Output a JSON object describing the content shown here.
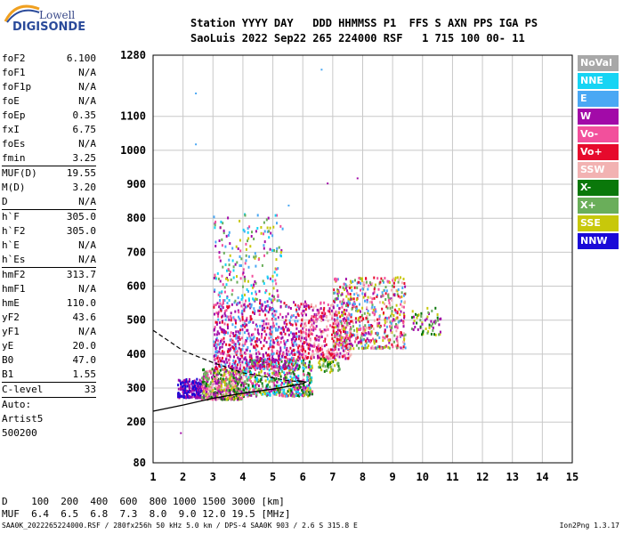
{
  "logo": {
    "line1": "Lowell",
    "line2": "DIGISONDE"
  },
  "header": {
    "line1": "Station YYYY DAY   DDD HHMMSS P1  FFS S AXN PPS IGA PS",
    "line2": "SaoLuis 2022 Sep22 265 224000 RSF   1 715 100 00- 11"
  },
  "params": [
    {
      "k": "foF2",
      "v": "6.100"
    },
    {
      "k": "foF1",
      "v": "N/A"
    },
    {
      "k": "foF1p",
      "v": "N/A"
    },
    {
      "k": "foE",
      "v": "N/A"
    },
    {
      "k": "foEp",
      "v": "0.35"
    },
    {
      "k": "fxI",
      "v": "6.75"
    },
    {
      "k": "foEs",
      "v": "N/A"
    },
    {
      "k": "fmin",
      "v": "3.25"
    },
    {
      "sep": true
    },
    {
      "k": "MUF(D)",
      "v": "19.55"
    },
    {
      "k": "M(D)",
      "v": "3.20"
    },
    {
      "k": "D",
      "v": "N/A"
    },
    {
      "sep": true
    },
    {
      "k": "h`F",
      "v": "305.0"
    },
    {
      "k": "h`F2",
      "v": "305.0"
    },
    {
      "k": "h`E",
      "v": "N/A"
    },
    {
      "k": "h`Es",
      "v": "N/A"
    },
    {
      "sep": true
    },
    {
      "k": "hmF2",
      "v": "313.7"
    },
    {
      "k": "hmF1",
      "v": "N/A"
    },
    {
      "k": "hmE",
      "v": "110.0"
    },
    {
      "k": "yF2",
      "v": "43.6"
    },
    {
      "k": "yF1",
      "v": "N/A"
    },
    {
      "k": "yE",
      "v": "20.0"
    },
    {
      "k": "B0",
      "v": "47.0"
    },
    {
      "k": "B1",
      "v": "1.55"
    },
    {
      "sep": true
    },
    {
      "k": "C-level",
      "v": "33"
    },
    {
      "sep": true
    },
    {
      "t": "Auto:"
    },
    {
      "t": "Artist5"
    },
    {
      "t": "500200"
    }
  ],
  "legend": [
    {
      "label": "NoVal",
      "color": "#a8a8a8"
    },
    {
      "label": "NNE",
      "color": "#16d4f4"
    },
    {
      "label": "E",
      "color": "#4aa8f4"
    },
    {
      "label": "W",
      "color": "#a20aa8"
    },
    {
      "label": "Vo-",
      "color": "#f2509c"
    },
    {
      "label": "Vo+",
      "color": "#e60a2c"
    },
    {
      "label": "SSW",
      "color": "#f2b2b2"
    },
    {
      "label": "X-",
      "color": "#0a780a"
    },
    {
      "label": "X+",
      "color": "#6aae5a"
    },
    {
      "label": "SSE",
      "color": "#c8c80a"
    },
    {
      "label": "NNW",
      "color": "#1a0ad8"
    }
  ],
  "bottom": {
    "line1": "D    100  200  400  600  800 1000 1500 3000 [km]",
    "line2": "MUF  6.4  6.5  6.8  7.3  8.0  9.0 12.0 19.5 [MHz]"
  },
  "footer": {
    "left": "SAA0K_2022265224000.RSF / 280fx256h 50 kHz 5.0 km / DPS-4 SAA0K 903 / 2.6 S 315.8 E",
    "right": "Ion2Png 1.3.17"
  },
  "chart_data": {
    "type": "scatter",
    "xlim": [
      1,
      15
    ],
    "ylim": [
      80,
      1280
    ],
    "x_ticks": [
      1,
      2,
      3,
      4,
      5,
      6,
      7,
      8,
      9,
      10,
      11,
      12,
      13,
      14,
      15
    ],
    "y_ticks": [
      80,
      200,
      300,
      400,
      500,
      600,
      700,
      800,
      900,
      1000,
      1100,
      1280
    ],
    "grid": true,
    "trace_solid": [
      [
        1,
        232
      ],
      [
        2,
        250
      ],
      [
        3,
        270
      ],
      [
        4,
        285
      ],
      [
        5,
        297
      ],
      [
        5.5,
        305
      ],
      [
        6,
        313
      ],
      [
        6.1,
        318
      ],
      [
        5.8,
        322
      ]
    ],
    "trace_dashed": [
      [
        1,
        470
      ],
      [
        2,
        410
      ],
      [
        3,
        375
      ],
      [
        4,
        345
      ],
      [
        5,
        330
      ],
      [
        5.5,
        322
      ],
      [
        6,
        318
      ]
    ],
    "clusters": [
      {
        "x": [
          1.8,
          2.6
        ],
        "y": [
          275,
          330
        ],
        "n": 200,
        "colors": [
          "#1a0ad8",
          "#a20aa8"
        ]
      },
      {
        "x": [
          2.6,
          4.0
        ],
        "y": [
          270,
          360
        ],
        "n": 500,
        "colors": [
          "#a20aa8",
          "#f2509c",
          "#6aae5a",
          "#c8c80a",
          "#0a780a",
          "#f2b2b2"
        ]
      },
      {
        "x": [
          4.0,
          6.3
        ],
        "y": [
          280,
          390
        ],
        "n": 550,
        "colors": [
          "#a20aa8",
          "#f2509c",
          "#6aae5a",
          "#0a780a",
          "#c8c80a",
          "#16d4f4"
        ]
      },
      {
        "x": [
          3.0,
          5.8
        ],
        "y": [
          360,
          560
        ],
        "n": 700,
        "colors": [
          "#a20aa8",
          "#a20aa8",
          "#f2509c",
          "#e60a2c",
          "#4aa8f4"
        ]
      },
      {
        "x": [
          5.8,
          7.6
        ],
        "y": [
          390,
          560
        ],
        "n": 420,
        "colors": [
          "#f2509c",
          "#e60a2c",
          "#a20aa8",
          "#f2b2b2"
        ]
      },
      {
        "x": [
          7.0,
          9.4
        ],
        "y": [
          420,
          630
        ],
        "n": 600,
        "colors": [
          "#a20aa8",
          "#f2509c",
          "#f2b2b2",
          "#e60a2c",
          "#c8c80a",
          "#6aae5a",
          "#4aa8f4"
        ]
      },
      {
        "x": [
          9.6,
          10.6
        ],
        "y": [
          460,
          540
        ],
        "n": 60,
        "colors": [
          "#6aae5a",
          "#0a780a",
          "#c8c80a",
          "#a20aa8"
        ]
      },
      {
        "x": [
          3.0,
          5.3
        ],
        "y": [
          560,
          820
        ],
        "n": 220,
        "colors": [
          "#a20aa8",
          "#f2509c",
          "#c8c80a",
          "#6aae5a",
          "#4aa8f4",
          "#16d4f4"
        ]
      },
      {
        "x": [
          6.5,
          7.2
        ],
        "y": [
          350,
          390
        ],
        "n": 50,
        "colors": [
          "#6aae5a",
          "#c8c80a",
          "#0a780a"
        ]
      }
    ],
    "outliers": [
      {
        "x": 2.4,
        "y": 1170,
        "c": "#4aa8f4"
      },
      {
        "x": 2.4,
        "y": 1020,
        "c": "#4aa8f4"
      },
      {
        "x": 6.6,
        "y": 1240,
        "c": "#4aa8f4"
      },
      {
        "x": 6.8,
        "y": 905,
        "c": "#a20aa8"
      },
      {
        "x": 5.5,
        "y": 840,
        "c": "#4aa8f4"
      },
      {
        "x": 1.9,
        "y": 170,
        "c": "#a20aa8"
      },
      {
        "x": 7.8,
        "y": 920,
        "c": "#a20aa8"
      }
    ]
  }
}
